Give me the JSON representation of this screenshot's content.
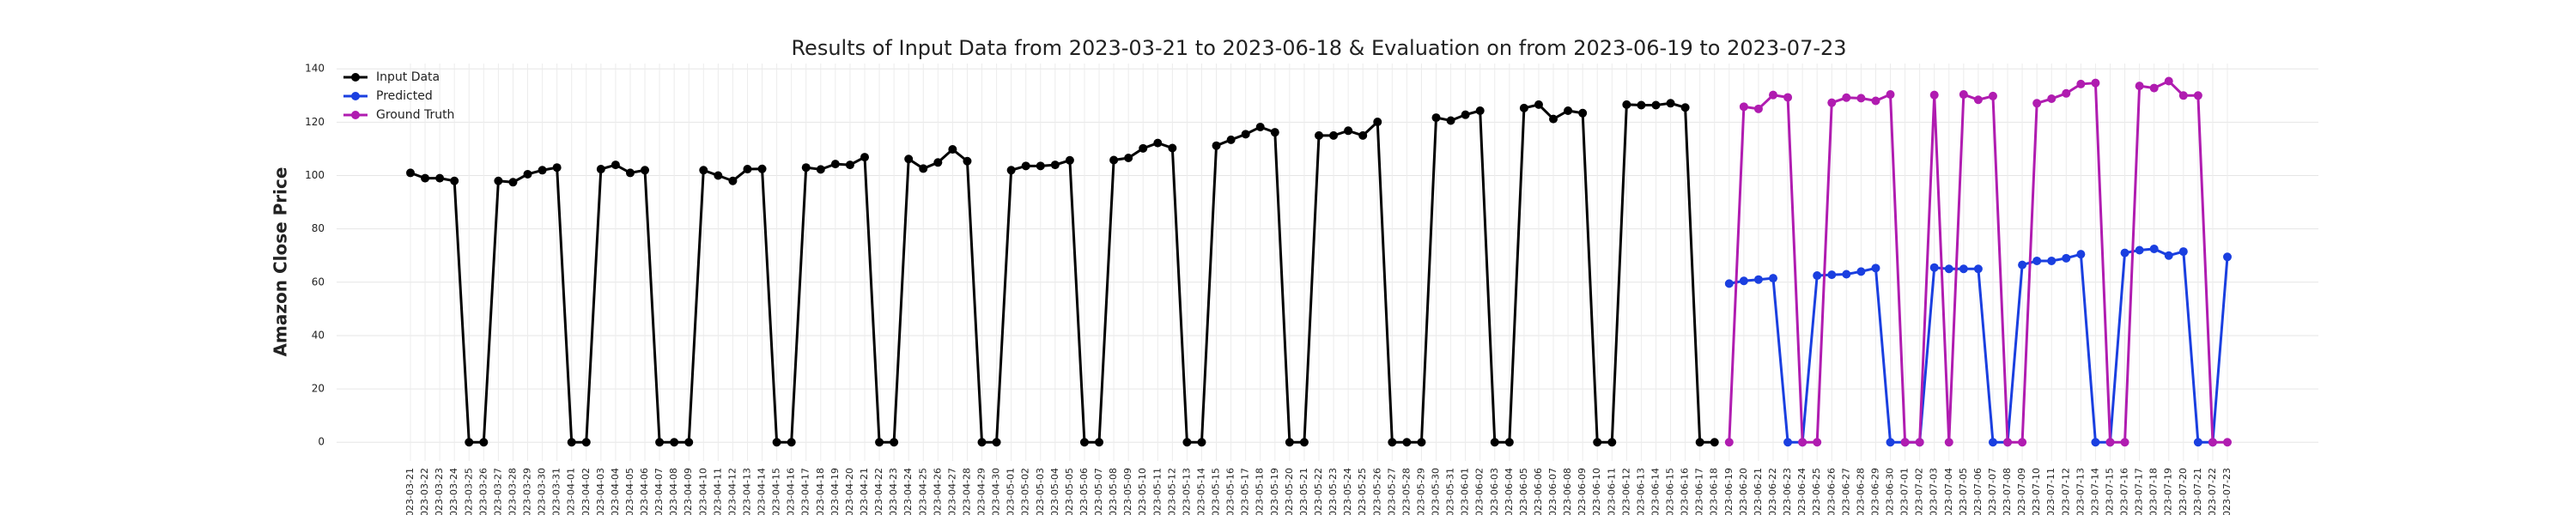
{
  "chart_data": {
    "type": "line",
    "title": "Results of Input Data from 2023-03-21 to 2023-06-18 & Evaluation on from 2023-06-19 to 2023-07-23",
    "y_label": "Amazon Close Price",
    "categories": [
      "2023-03-21",
      "2023-03-22",
      "2023-03-23",
      "2023-03-24",
      "2023-03-25",
      "2023-03-26",
      "2023-03-27",
      "2023-03-28",
      "2023-03-29",
      "2023-03-30",
      "2023-03-31",
      "2023-04-01",
      "2023-04-02",
      "2023-04-03",
      "2023-04-04",
      "2023-04-05",
      "2023-04-06",
      "2023-04-07",
      "2023-04-08",
      "2023-04-09",
      "2023-04-10",
      "2023-04-11",
      "2023-04-12",
      "2023-04-13",
      "2023-04-14",
      "2023-04-15",
      "2023-04-16",
      "2023-04-17",
      "2023-04-18",
      "2023-04-19",
      "2023-04-20",
      "2023-04-21",
      "2023-04-22",
      "2023-04-23",
      "2023-04-24",
      "2023-04-25",
      "2023-04-26",
      "2023-04-27",
      "2023-04-28",
      "2023-04-29",
      "2023-04-30",
      "2023-05-01",
      "2023-05-02",
      "2023-05-03",
      "2023-05-04",
      "2023-05-05",
      "2023-05-06",
      "2023-05-07",
      "2023-05-08",
      "2023-05-09",
      "2023-05-10",
      "2023-05-11",
      "2023-05-12",
      "2023-05-13",
      "2023-05-14",
      "2023-05-15",
      "2023-05-16",
      "2023-05-17",
      "2023-05-18",
      "2023-05-19",
      "2023-05-20",
      "2023-05-21",
      "2023-05-22",
      "2023-05-23",
      "2023-05-24",
      "2023-05-25",
      "2023-05-26",
      "2023-05-27",
      "2023-05-28",
      "2023-05-29",
      "2023-05-30",
      "2023-05-31",
      "2023-06-01",
      "2023-06-02",
      "2023-06-03",
      "2023-06-04",
      "2023-06-05",
      "2023-06-06",
      "2023-06-07",
      "2023-06-08",
      "2023-06-09",
      "2023-06-10",
      "2023-06-11",
      "2023-06-12",
      "2023-06-13",
      "2023-06-14",
      "2023-06-15",
      "2023-06-16",
      "2023-06-17",
      "2023-06-18",
      "2023-06-19",
      "2023-06-20",
      "2023-06-21",
      "2023-06-22",
      "2023-06-23",
      "2023-06-24",
      "2023-06-25",
      "2023-06-26",
      "2023-06-27",
      "2023-06-28",
      "2023-06-29",
      "2023-06-30",
      "2023-07-01",
      "2023-07-02",
      "2023-07-03",
      "2023-07-04",
      "2023-07-05",
      "2023-07-06",
      "2023-07-07",
      "2023-07-08",
      "2023-07-09",
      "2023-07-10",
      "2023-07-11",
      "2023-07-12",
      "2023-07-13",
      "2023-07-14",
      "2023-07-15",
      "2023-07-16",
      "2023-07-17",
      "2023-07-18",
      "2023-07-19",
      "2023-07-20",
      "2023-07-21",
      "2023-07-22",
      "2023-07-23"
    ],
    "series": [
      {
        "name": "Input Data",
        "color": "#000000",
        "values": [
          101,
          99,
          99,
          98,
          0,
          0,
          98,
          97.5,
          100.5,
          102,
          103,
          0,
          0,
          102.4,
          104,
          101,
          102,
          0,
          0,
          0,
          102,
          100,
          98,
          102.4,
          102.5,
          0,
          0,
          103,
          102.3,
          104.3,
          104,
          106.9,
          0,
          0,
          106.2,
          102.6,
          104.9,
          109.8,
          105.4,
          0,
          0,
          102,
          103.6,
          103.6,
          104,
          105.7,
          0,
          0,
          105.8,
          106.6,
          110.2,
          112.2,
          110.3,
          0,
          0,
          111.2,
          113.4,
          115.5,
          118.2,
          116.2,
          0,
          0,
          115,
          115,
          116.8,
          115,
          120.1,
          0,
          0,
          0,
          121.7,
          120.6,
          122.8,
          124.3,
          0,
          0,
          125.3,
          126.6,
          121.2,
          124.3,
          123.4,
          0,
          0,
          126.6,
          126.4,
          126.4,
          127.1,
          125.5,
          0,
          0,
          null,
          null,
          null,
          null,
          null,
          null,
          null,
          null,
          null,
          null,
          null,
          null,
          null,
          null,
          null,
          null,
          null,
          null,
          null,
          null,
          null,
          null,
          null,
          null,
          null,
          null,
          null,
          null,
          null,
          null,
          null,
          null,
          null,
          null,
          null
        ]
      },
      {
        "name": "Predicted",
        "color": "#1a3fe0",
        "values": [
          null,
          null,
          null,
          null,
          null,
          null,
          null,
          null,
          null,
          null,
          null,
          null,
          null,
          null,
          null,
          null,
          null,
          null,
          null,
          null,
          null,
          null,
          null,
          null,
          null,
          null,
          null,
          null,
          null,
          null,
          null,
          null,
          null,
          null,
          null,
          null,
          null,
          null,
          null,
          null,
          null,
          null,
          null,
          null,
          null,
          null,
          null,
          null,
          null,
          null,
          null,
          null,
          null,
          null,
          null,
          null,
          null,
          null,
          null,
          null,
          null,
          null,
          null,
          null,
          null,
          null,
          null,
          null,
          null,
          null,
          null,
          null,
          null,
          null,
          null,
          null,
          null,
          null,
          null,
          null,
          null,
          null,
          null,
          null,
          null,
          null,
          null,
          null,
          null,
          null,
          59.5,
          60.5,
          61,
          61.5,
          0,
          0,
          62.5,
          62.8,
          63,
          64,
          65.3,
          0,
          0,
          0,
          65.5,
          65,
          65,
          65,
          0,
          0,
          66.5,
          68,
          68,
          69,
          70.5,
          0,
          0,
          71,
          72,
          72.5,
          70,
          71.5,
          0,
          0,
          69.5
        ]
      },
      {
        "name": "Ground Truth",
        "color": "#b01cb0",
        "values": [
          null,
          null,
          null,
          null,
          null,
          null,
          null,
          null,
          null,
          null,
          null,
          null,
          null,
          null,
          null,
          null,
          null,
          null,
          null,
          null,
          null,
          null,
          null,
          null,
          null,
          null,
          null,
          null,
          null,
          null,
          null,
          null,
          null,
          null,
          null,
          null,
          null,
          null,
          null,
          null,
          null,
          null,
          null,
          null,
          null,
          null,
          null,
          null,
          null,
          null,
          null,
          null,
          null,
          null,
          null,
          null,
          null,
          null,
          null,
          null,
          null,
          null,
          null,
          null,
          null,
          null,
          null,
          null,
          null,
          null,
          null,
          null,
          null,
          null,
          null,
          null,
          null,
          null,
          null,
          null,
          null,
          null,
          null,
          null,
          null,
          null,
          null,
          null,
          null,
          null,
          0,
          125.8,
          125,
          130.2,
          129.3,
          0,
          0,
          127.3,
          129.2,
          129,
          128,
          130.4,
          0,
          0,
          130.2,
          0,
          130.4,
          128.4,
          129.8,
          0,
          0,
          127.1,
          128.8,
          130.8,
          134.3,
          134.7,
          0,
          0,
          133.6,
          132.8,
          135.4,
          130,
          130,
          0,
          0
        ]
      }
    ],
    "ylim": [
      -7,
      142
    ],
    "yticks": [
      0,
      20,
      40,
      60,
      80,
      100,
      120,
      140
    ],
    "grid": true,
    "legend": "upper left"
  }
}
